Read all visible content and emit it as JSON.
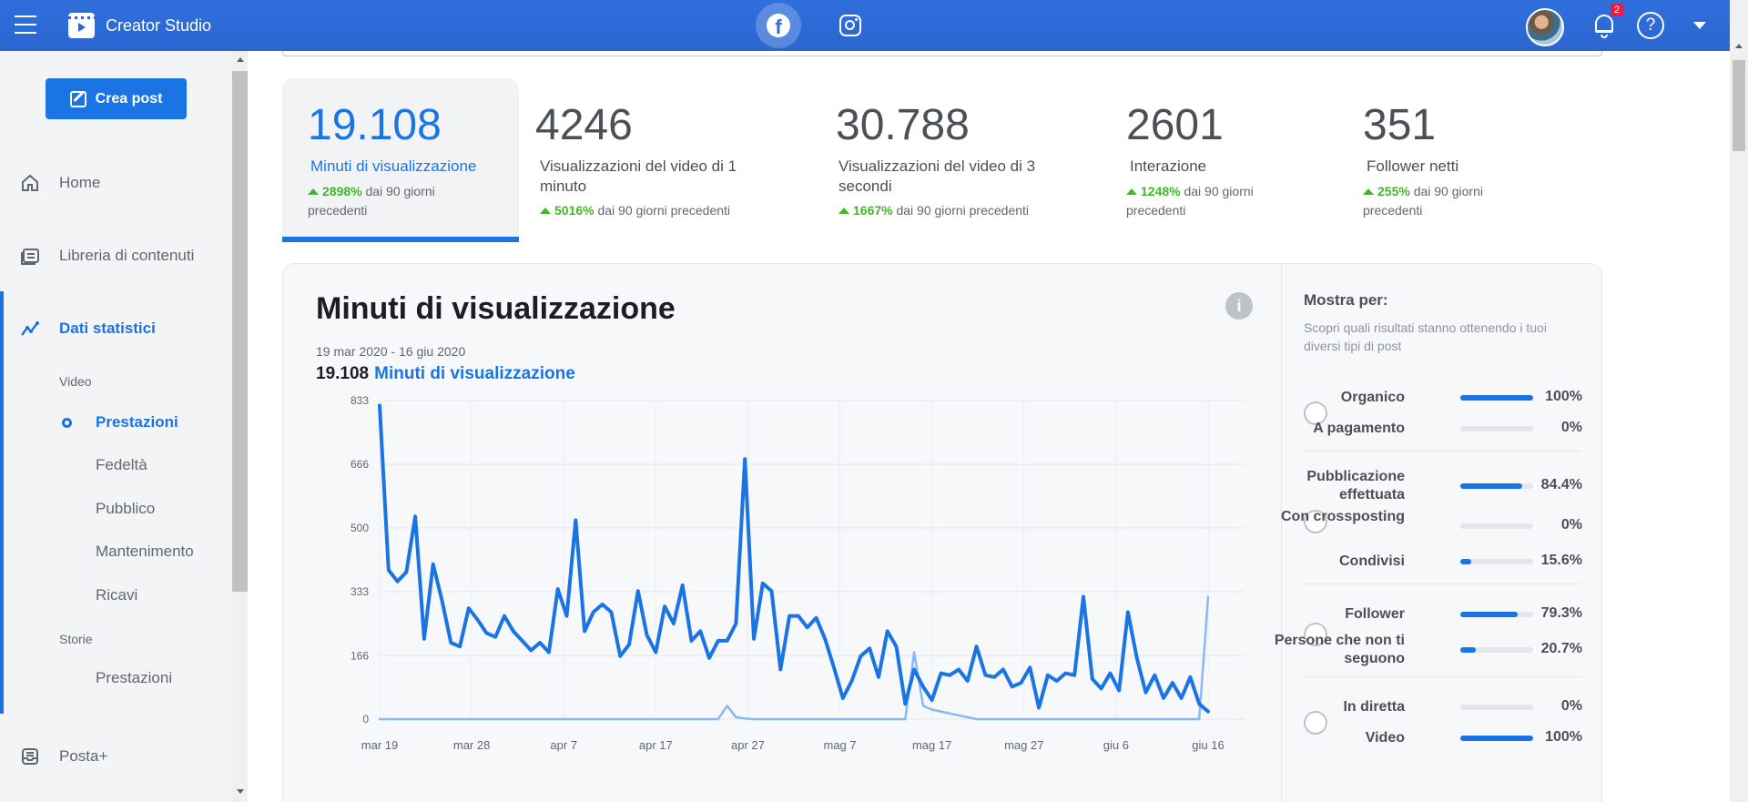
{
  "app": {
    "title": "Creator Studio",
    "notifications": "2"
  },
  "sidebar": {
    "create_label": "Crea post",
    "nav": {
      "home": "Home",
      "library": "Libreria di contenuti",
      "insights": "Dati statistici",
      "inbox": "Posta+"
    },
    "video_header": "Video",
    "video_items": [
      "Prestazioni",
      "Fedeltà",
      "Pubblico",
      "Mantenimento",
      "Ricavi"
    ],
    "stories_header": "Storie",
    "stories_items": [
      "Prestazioni"
    ]
  },
  "metrics": [
    {
      "value": "19.108",
      "label": "Minuti di visualizzazione",
      "pct": "2898%",
      "suffix": " dai 90 giorni precedenti"
    },
    {
      "value": "4246",
      "label": "Visualizzazioni del video di 1 minuto",
      "pct": "5016%",
      "suffix": " dai 90 giorni precedenti"
    },
    {
      "value": "30.788",
      "label": "Visualizzazioni del video di 3 secondi",
      "pct": "1667%",
      "suffix": " dai 90 giorni precedenti"
    },
    {
      "value": "2601",
      "label": "Interazione",
      "pct": "1248%",
      "suffix": " dai 90 giorni precedenti"
    },
    {
      "value": "351",
      "label": "Follower netti",
      "pct": "255%",
      "suffix": " dai 90 giorni precedenti"
    }
  ],
  "card": {
    "title": "Minuti di visualizzazione",
    "range": "19 mar 2020 - 16 giu 2020",
    "total_value": "19.108",
    "total_label": "Minuti di visualizzazione"
  },
  "panel": {
    "title": "Mostra per:",
    "desc": "Scopri quali risultati stanno ottenendo i tuoi diversi tipi di post",
    "groups": [
      {
        "rows": [
          {
            "label": "Organico",
            "pct": "100%",
            "value": 1.0
          },
          {
            "label": "A pagamento",
            "pct": "0%",
            "value": 0
          }
        ]
      },
      {
        "rows": [
          {
            "label": "Pubblicazione effettuata",
            "pct": "84.4%",
            "value": 0.844
          },
          {
            "label": "Con crossposting",
            "pct": "0%",
            "value": 0
          },
          {
            "label": "Condivisi",
            "pct": "15.6%",
            "value": 0.156
          }
        ]
      },
      {
        "rows": [
          {
            "label": "Follower",
            "pct": "79.3%",
            "value": 0.793
          },
          {
            "label": "Persone che non ti seguono",
            "pct": "20.7%",
            "value": 0.207
          }
        ]
      },
      {
        "rows": [
          {
            "label": "In diretta",
            "pct": "0%",
            "value": 0
          },
          {
            "label": "Video",
            "pct": "100%",
            "value": 1.0
          }
        ]
      }
    ]
  },
  "colors": {
    "accent": "#1b74e4",
    "topbar": "#2b66d1",
    "positive": "#42b72a",
    "series_secondary": "#8ab8f5"
  },
  "chart_data": {
    "type": "line",
    "title": "",
    "xlabel": "",
    "ylabel": "",
    "ylim": [
      0,
      833
    ],
    "yticks": [
      "0",
      "166",
      "333",
      "500",
      "666",
      "833"
    ],
    "xticks": [
      "mar 19",
      "mar 28",
      "apr 7",
      "apr 17",
      "apr 27",
      "mag 7",
      "mag 17",
      "mag 27",
      "giu 6",
      "giu 16"
    ],
    "series": [
      {
        "values": [
          820,
          390,
          360,
          385,
          530,
          210,
          405,
          310,
          200,
          190,
          290,
          260,
          225,
          215,
          270,
          230,
          205,
          180,
          200,
          175,
          340,
          270,
          520,
          230,
          280,
          300,
          280,
          165,
          195,
          335,
          220,
          175,
          295,
          250,
          350,
          205,
          230,
          160,
          205,
          205,
          250,
          680,
          210,
          355,
          335,
          130,
          270,
          270,
          240,
          265,
          210,
          135,
          55,
          100,
          165,
          185,
          110,
          230,
          190,
          40,
          130,
          85,
          50,
          120,
          115,
          130,
          100,
          190,
          115,
          110,
          130,
          85,
          95,
          135,
          30,
          115,
          100,
          120,
          115,
          320,
          105,
          80,
          120,
          75,
          280,
          160,
          70,
          115,
          55,
          95,
          55,
          110,
          40,
          20
        ]
      },
      {
        "values": [
          0,
          0,
          0,
          0,
          0,
          0,
          0,
          0,
          0,
          0,
          0,
          0,
          0,
          0,
          0,
          0,
          0,
          0,
          0,
          0,
          0,
          0,
          0,
          0,
          0,
          0,
          0,
          0,
          0,
          0,
          0,
          0,
          0,
          0,
          0,
          0,
          0,
          0,
          0,
          35,
          5,
          2,
          0,
          0,
          0,
          0,
          0,
          0,
          0,
          0,
          0,
          0,
          0,
          0,
          0,
          0,
          0,
          0,
          0,
          0,
          175,
          35,
          25,
          20,
          15,
          10,
          5,
          0,
          0,
          0,
          0,
          0,
          0,
          0,
          0,
          0,
          0,
          0,
          0,
          0,
          0,
          0,
          0,
          0,
          0,
          0,
          0,
          0,
          0,
          0,
          0,
          0,
          0,
          320
        ]
      }
    ]
  }
}
